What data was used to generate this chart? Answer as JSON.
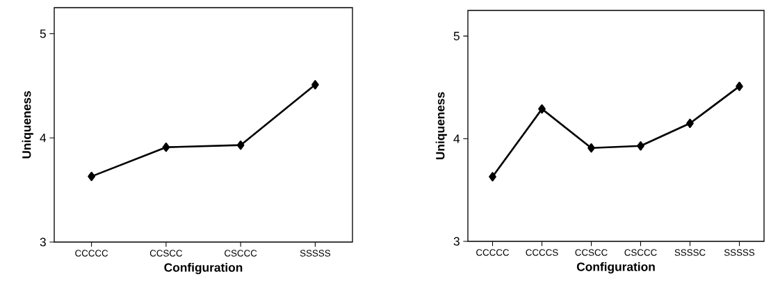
{
  "chart_data": [
    {
      "type": "line",
      "categories": [
        "CCCCC",
        "CCSCC",
        "CSCCC",
        "SSSSS"
      ],
      "values": [
        3.63,
        3.91,
        3.93,
        4.51
      ],
      "color": "#000000",
      "xlabel": "Configuration",
      "ylabel": "Uniqueness",
      "ylim": [
        3,
        5.25
      ],
      "yticks": [
        3,
        4,
        5
      ],
      "marker": "diamond",
      "line_style": "solid",
      "grid": false
    },
    {
      "type": "line",
      "categories": [
        "CCCCC",
        "CCCCS",
        "CCSCC",
        "CSCCC",
        "SSSSC",
        "SSSSS"
      ],
      "values": [
        3.63,
        4.29,
        3.91,
        3.93,
        4.15,
        4.51
      ],
      "color": "#000000",
      "xlabel": "Configuration",
      "ylabel": "Uniqueness",
      "ylim": [
        3,
        5.25
      ],
      "yticks": [
        3,
        4,
        5
      ],
      "marker": "diamond",
      "line_style": "solid",
      "grid": false
    }
  ]
}
